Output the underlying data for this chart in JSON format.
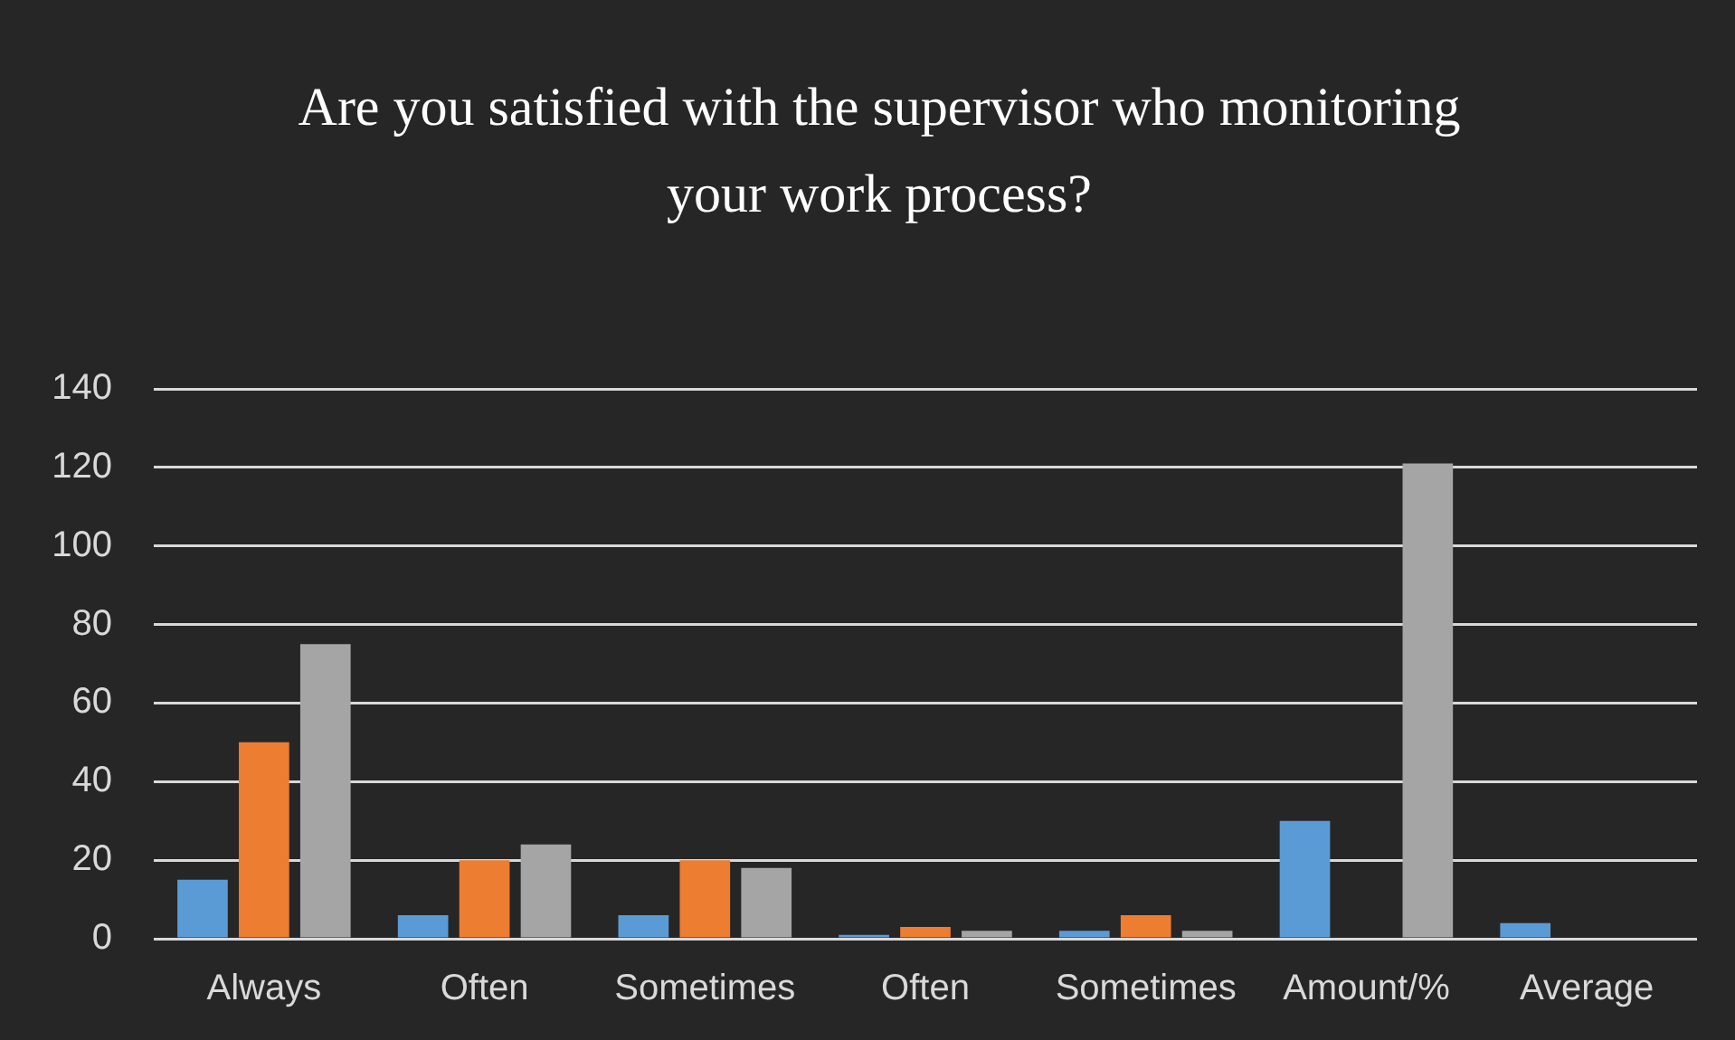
{
  "chart_data": {
    "type": "bar",
    "title": "Are you satisfied with the supervisor who monitoring your work process?",
    "categories": [
      "Always",
      "Often",
      "Sometimes",
      "Often",
      "Sometimes",
      "Amount/%",
      "Average"
    ],
    "series": [
      {
        "color": "#5b9bd5",
        "values": [
          15,
          6,
          6,
          1,
          2,
          30,
          4
        ]
      },
      {
        "color": "#ed7d31",
        "values": [
          50,
          20,
          20,
          3,
          6,
          null,
          null
        ]
      },
      {
        "color": "#a5a5a5",
        "values": [
          75,
          24,
          18,
          2,
          2,
          121,
          null
        ]
      }
    ],
    "ylim": [
      0,
      140
    ],
    "yticks": [
      0,
      20,
      40,
      60,
      80,
      100,
      120,
      140
    ],
    "grid": "y"
  }
}
